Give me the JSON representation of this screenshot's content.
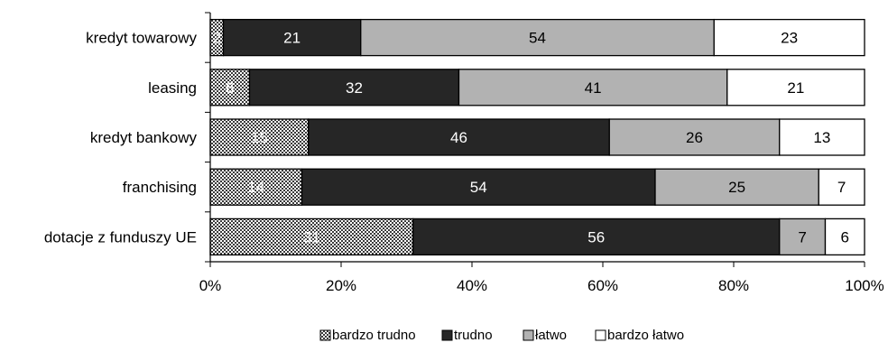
{
  "chart_data": {
    "type": "bar",
    "orientation": "horizontal",
    "stacked": true,
    "percent": true,
    "categories": [
      "kredyt towarowy",
      "leasing",
      "kredyt bankowy",
      "franchising",
      "dotacje z funduszy UE"
    ],
    "series": [
      {
        "name": "bardzo trudno",
        "values": [
          2,
          6,
          15,
          14,
          31
        ],
        "color": "#8a8a8a",
        "pattern": "dotted"
      },
      {
        "name": "trudno",
        "values": [
          21,
          32,
          46,
          54,
          56
        ],
        "color": "#262626"
      },
      {
        "name": "łatwo",
        "values": [
          54,
          41,
          26,
          25,
          7
        ],
        "color": "#b2b2b2"
      },
      {
        "name": "bardzo łatwo",
        "values": [
          23,
          21,
          13,
          7,
          6
        ],
        "color": "#ffffff"
      }
    ],
    "xaxis": {
      "ticks": [
        "0%",
        "20%",
        "40%",
        "60%",
        "80%",
        "100%"
      ],
      "range": [
        0,
        100
      ]
    },
    "grid": false,
    "legend_position": "bottom",
    "title": "",
    "xlabel": "",
    "ylabel": ""
  }
}
